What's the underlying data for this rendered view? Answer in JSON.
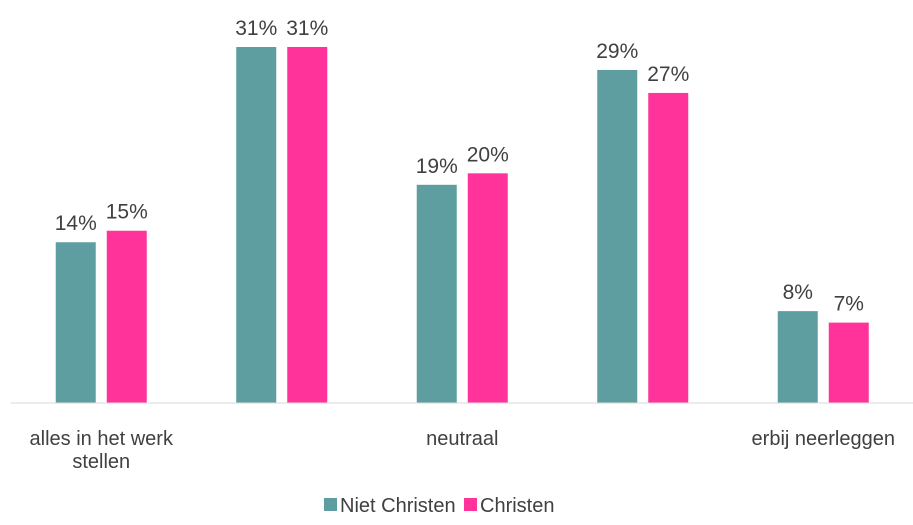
{
  "chart_data": {
    "type": "bar",
    "categories": [
      [
        "alles in het werk",
        "stellen"
      ],
      [],
      [
        "neutraal"
      ],
      [],
      [
        "erbij neerleggen"
      ]
    ],
    "series": [
      {
        "name": "Niet Christen",
        "values": [
          14,
          31,
          19,
          29,
          8
        ],
        "color": "#5f9ea0"
      },
      {
        "name": "Christen",
        "values": [
          15,
          31,
          20,
          27,
          7
        ],
        "color": "#ff3399"
      }
    ],
    "value_suffix": "%",
    "ylim": [
      0,
      31
    ],
    "grid": false,
    "legend_position": "bottom"
  }
}
